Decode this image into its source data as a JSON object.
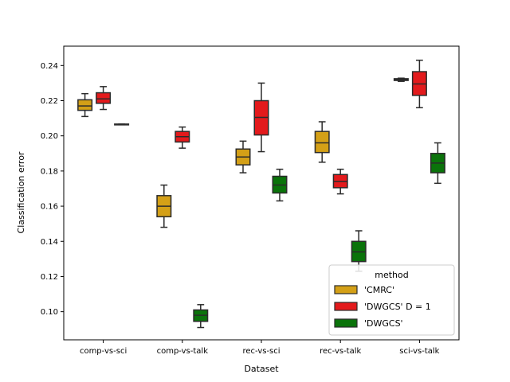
{
  "chart_data": {
    "type": "box",
    "xlabel": "Dataset",
    "ylabel": "Classification error",
    "ylim": [
      0.084,
      0.251
    ],
    "yticks": [
      0.1,
      0.12,
      0.14,
      0.16,
      0.18,
      0.2,
      0.22,
      0.24
    ],
    "ytick_labels": [
      "0.10",
      "0.12",
      "0.14",
      "0.16",
      "0.18",
      "0.20",
      "0.22",
      "0.24"
    ],
    "categories": [
      "comp-vs-sci",
      "comp-vs-talk",
      "rec-vs-sci",
      "rec-vs-talk",
      "sci-vs-talk"
    ],
    "legend": {
      "title": "method",
      "placement": "lower right"
    },
    "series": [
      {
        "name": "'CMRC'",
        "color": "#d4a017",
        "boxes": [
          {
            "min": 0.211,
            "q1": 0.2145,
            "median": 0.217,
            "q3": 0.2205,
            "max": 0.224
          },
          {
            "min": 0.148,
            "q1": 0.154,
            "median": 0.16,
            "q3": 0.166,
            "max": 0.172
          },
          {
            "min": 0.179,
            "q1": 0.1835,
            "median": 0.188,
            "q3": 0.1925,
            "max": 0.197
          },
          {
            "min": 0.185,
            "q1": 0.1905,
            "median": 0.196,
            "q3": 0.2025,
            "max": 0.208
          },
          null
        ]
      },
      {
        "name": "'DWGCS' D = 1",
        "color": "#e31a1c",
        "boxes": [
          {
            "min": 0.215,
            "q1": 0.2185,
            "median": 0.221,
            "q3": 0.2245,
            "max": 0.228
          },
          {
            "min": 0.193,
            "q1": 0.1965,
            "median": 0.1995,
            "q3": 0.2025,
            "max": 0.205
          },
          {
            "min": 0.191,
            "q1": 0.2005,
            "median": 0.2105,
            "q3": 0.22,
            "max": 0.23
          },
          {
            "min": 0.167,
            "q1": 0.1705,
            "median": 0.174,
            "q3": 0.178,
            "max": 0.181
          },
          {
            "min": 0.216,
            "q1": 0.223,
            "median": 0.2295,
            "q3": 0.2365,
            "max": 0.243
          }
        ]
      },
      {
        "name": "'DWGCS'",
        "color": "#0a730a",
        "boxes": [
          {
            "min": 0.2063,
            "q1": 0.2063,
            "median": 0.2065,
            "q3": 0.2067,
            "max": 0.2067
          },
          {
            "min": 0.091,
            "q1": 0.0945,
            "median": 0.098,
            "q3": 0.101,
            "max": 0.104
          },
          {
            "min": 0.163,
            "q1": 0.1675,
            "median": 0.172,
            "q3": 0.177,
            "max": 0.181
          },
          {
            "min": 0.123,
            "q1": 0.1285,
            "median": 0.134,
            "q3": 0.14,
            "max": 0.146
          },
          {
            "min": 0.173,
            "q1": 0.179,
            "median": 0.1845,
            "q3": 0.19,
            "max": 0.196
          }
        ]
      }
    ],
    "extra_boxes": [
      {
        "category": "sci-vs-talk",
        "series": "'CMRC'",
        "min": 0.231,
        "q1": 0.2315,
        "median": 0.232,
        "q3": 0.2325,
        "max": 0.2328
      }
    ]
  }
}
